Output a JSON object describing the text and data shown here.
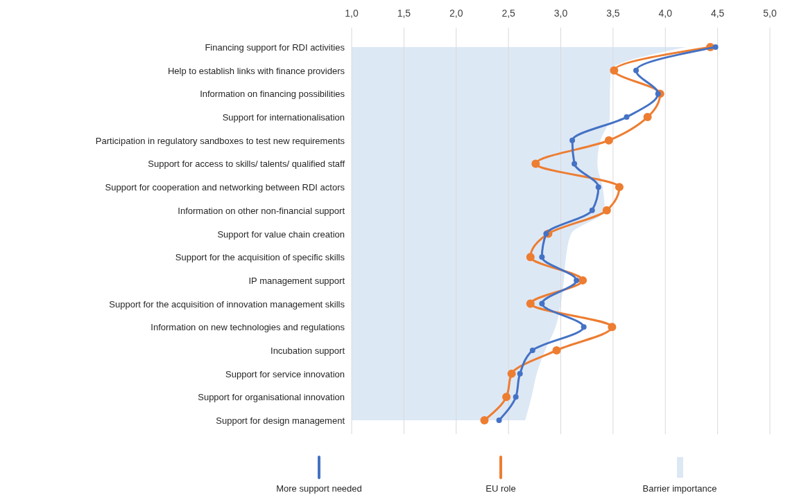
{
  "chart_data": {
    "type": "line",
    "orientation": "horizontal",
    "categories": [
      "Financing support for RDI activities",
      "Help to establish links with finance providers",
      "Information on financing possibilities",
      "Support for internationalisation",
      "Participation in regulatory sandboxes to test new requirements",
      "Support for access to skills/ talents/ qualified staff",
      "Support for cooperation and networking between RDI actors",
      "Information on other non-financial support",
      "Support for value chain creation",
      "Support for the acquisition of specific skills",
      "IP management support",
      "Support for the acquisition of innovation management skills",
      "Information on new technologies and regulations",
      "Incubation support",
      "Support for service innovation",
      "Support for organisational innovation",
      "Support for design management"
    ],
    "series": [
      {
        "name": "Barrier importance",
        "type": "area",
        "color": "#dde8f5",
        "values": [
          4.2,
          3.48,
          3.47,
          3.47,
          3.38,
          3.35,
          3.4,
          3.42,
          3.1,
          3.05,
          3.03,
          3.0,
          2.95,
          2.85,
          2.77,
          2.72,
          2.66
        ]
      },
      {
        "name": "EU role",
        "type": "line",
        "marker": "circle",
        "color": "#ed7d31",
        "values": [
          4.43,
          3.51,
          3.95,
          3.83,
          3.46,
          2.76,
          3.56,
          3.44,
          2.88,
          2.71,
          3.21,
          2.71,
          3.49,
          2.96,
          2.53,
          2.48,
          2.27
        ]
      },
      {
        "name": "More support needed",
        "type": "line",
        "marker": "circle",
        "color": "#4472c4",
        "values": [
          4.48,
          3.72,
          3.93,
          3.63,
          3.11,
          3.13,
          3.36,
          3.3,
          2.86,
          2.82,
          3.15,
          2.82,
          3.22,
          2.73,
          2.61,
          2.57,
          2.41
        ]
      }
    ],
    "xlim": [
      1,
      5
    ],
    "xticks": [
      {
        "value": 1,
        "label": "1,0"
      },
      {
        "value": 1.5,
        "label": "1,5"
      },
      {
        "value": 2,
        "label": "2,0"
      },
      {
        "value": 2.5,
        "label": "2,5"
      },
      {
        "value": 3,
        "label": "3,0"
      },
      {
        "value": 3.5,
        "label": "3,5"
      },
      {
        "value": 4,
        "label": "4,0"
      },
      {
        "value": 4.5,
        "label": "4,5"
      },
      {
        "value": 5,
        "label": "5,0"
      }
    ],
    "grid": "x",
    "legend": "bottom",
    "line_style": "solid"
  }
}
